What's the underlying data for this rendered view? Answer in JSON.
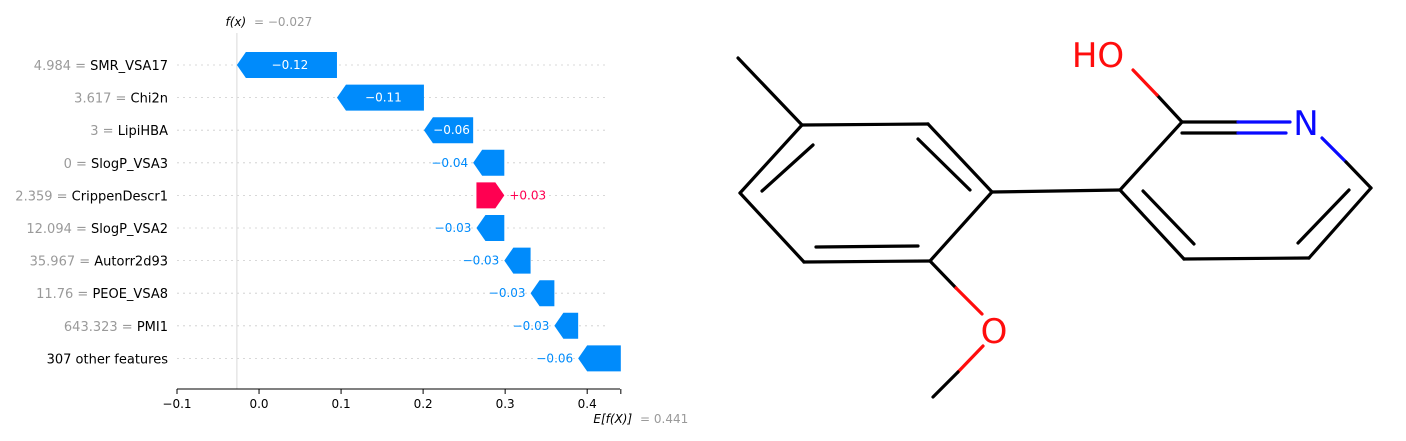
{
  "chart_data": {
    "type": "waterfall",
    "title": "",
    "xlabel": "",
    "ylabel": "",
    "xlim": [
      -0.1,
      0.44
    ],
    "xticks": [
      -0.1,
      0.0,
      0.1,
      0.2,
      0.3,
      0.4
    ],
    "xtick_labels": [
      "−0.1",
      "0.0",
      "0.1",
      "0.2",
      "0.3",
      "0.4"
    ],
    "fx_label": "f(x)",
    "fx_value": -0.027,
    "fx_value_label": "= −0.027",
    "efx_label": "E[f(X)]",
    "efx_value": 0.441,
    "efx_value_label": "= 0.441",
    "positive_color": "#ff0051",
    "negative_color": "#008bfb",
    "features": [
      {
        "value": "4.984",
        "name": "SMR_VSA17",
        "contribution": -0.12,
        "label": "−0.12",
        "start": 0.095,
        "end": -0.027
      },
      {
        "value": "3.617",
        "name": "Chi2n",
        "contribution": -0.11,
        "label": "−0.11",
        "start": 0.201,
        "end": 0.095
      },
      {
        "value": "3",
        "name": "LipiHBA",
        "contribution": -0.06,
        "label": "−0.06",
        "start": 0.261,
        "end": 0.201
      },
      {
        "value": "0",
        "name": "SlogP_VSA3",
        "contribution": -0.04,
        "label": "−0.04",
        "start": 0.299,
        "end": 0.261
      },
      {
        "value": "2.359",
        "name": "CrippenDescr1",
        "contribution": 0.03,
        "label": "+0.03",
        "start": 0.265,
        "end": 0.299
      },
      {
        "value": "12.094",
        "name": "SlogP_VSA2",
        "contribution": -0.03,
        "label": "−0.03",
        "start": 0.299,
        "end": 0.265
      },
      {
        "value": "35.967",
        "name": "Autorr2d93",
        "contribution": -0.03,
        "label": "−0.03",
        "start": 0.331,
        "end": 0.299
      },
      {
        "value": "11.76",
        "name": "PEOE_VSA8",
        "contribution": -0.03,
        "label": "−0.03",
        "start": 0.36,
        "end": 0.331
      },
      {
        "value": "643.323",
        "name": "PMI1",
        "contribution": -0.03,
        "label": "−0.03",
        "start": 0.389,
        "end": 0.36
      },
      {
        "value": "",
        "name": "307 other features",
        "contribution": -0.06,
        "label": "−0.06",
        "start": 0.441,
        "end": 0.389
      }
    ]
  },
  "molecule": {
    "hydroxyl_label": "HO",
    "nitrogen_label": "N",
    "oxygen_label": "O",
    "bond_color": "#000000",
    "oxygen_color": "#ff0d0d",
    "nitrogen_color": "#0a0aff"
  }
}
